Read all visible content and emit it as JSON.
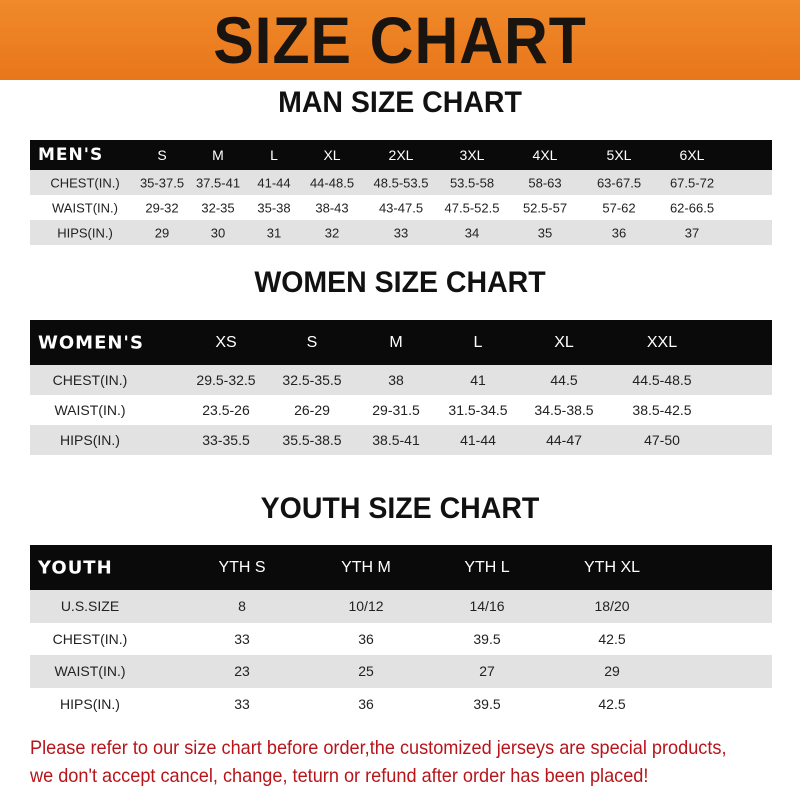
{
  "banner": {
    "title": "SIZE CHART",
    "color": "#ec801f"
  },
  "men": {
    "title": "MAN SIZE CHART",
    "header": [
      "MEN'S",
      "S",
      "M",
      "L",
      "XL",
      "2XL",
      "3XL",
      "4XL",
      "5XL",
      "6XL"
    ],
    "rows": [
      [
        "CHEST(IN.)",
        "35-37.5",
        "37.5-41",
        "41-44",
        "44-48.5",
        "48.5-53.5",
        "53.5-58",
        "58-63",
        "63-67.5",
        "67.5-72"
      ],
      [
        "WAIST(IN.)",
        "29-32",
        "32-35",
        "35-38",
        "38-43",
        "43-47.5",
        "47.5-52.5",
        "52.5-57",
        "57-62",
        "62-66.5"
      ],
      [
        "HIPS(IN.)",
        "29",
        "30",
        "31",
        "32",
        "33",
        "34",
        "35",
        "36",
        "37"
      ]
    ]
  },
  "women": {
    "title": "WOMEN SIZE CHART",
    "header": [
      "WOMEN'S",
      "XS",
      "S",
      "M",
      "L",
      "XL",
      "XXL"
    ],
    "rows": [
      [
        "CHEST(IN.)",
        "29.5-32.5",
        "32.5-35.5",
        "38",
        "41",
        "44.5",
        "44.5-48.5"
      ],
      [
        "WAIST(IN.)",
        "23.5-26",
        "26-29",
        "29-31.5",
        "31.5-34.5",
        "34.5-38.5",
        "38.5-42.5"
      ],
      [
        "HIPS(IN.)",
        "33-35.5",
        "35.5-38.5",
        "38.5-41",
        "41-44",
        "44-47",
        "47-50"
      ]
    ]
  },
  "youth": {
    "title": "YOUTH SIZE CHART",
    "header": [
      "YOUTH",
      "YTH S",
      "YTH M",
      "YTH L",
      "YTH XL"
    ],
    "rows": [
      [
        "U.S.SIZE",
        "8",
        "10/12",
        "14/16",
        "18/20"
      ],
      [
        "CHEST(IN.)",
        "33",
        "36",
        "39.5",
        "42.5"
      ],
      [
        "WAIST(IN.)",
        "23",
        "25",
        "27",
        "29"
      ],
      [
        "HIPS(IN.)",
        "33",
        "36",
        "39.5",
        "42.5"
      ]
    ]
  },
  "notice": {
    "line1": "Please refer to our size chart before order,the customized jerseys are special products,",
    "line2": "we don't accept cancel, change, teturn or refund after order has been placed!",
    "color": "#b8141a"
  }
}
